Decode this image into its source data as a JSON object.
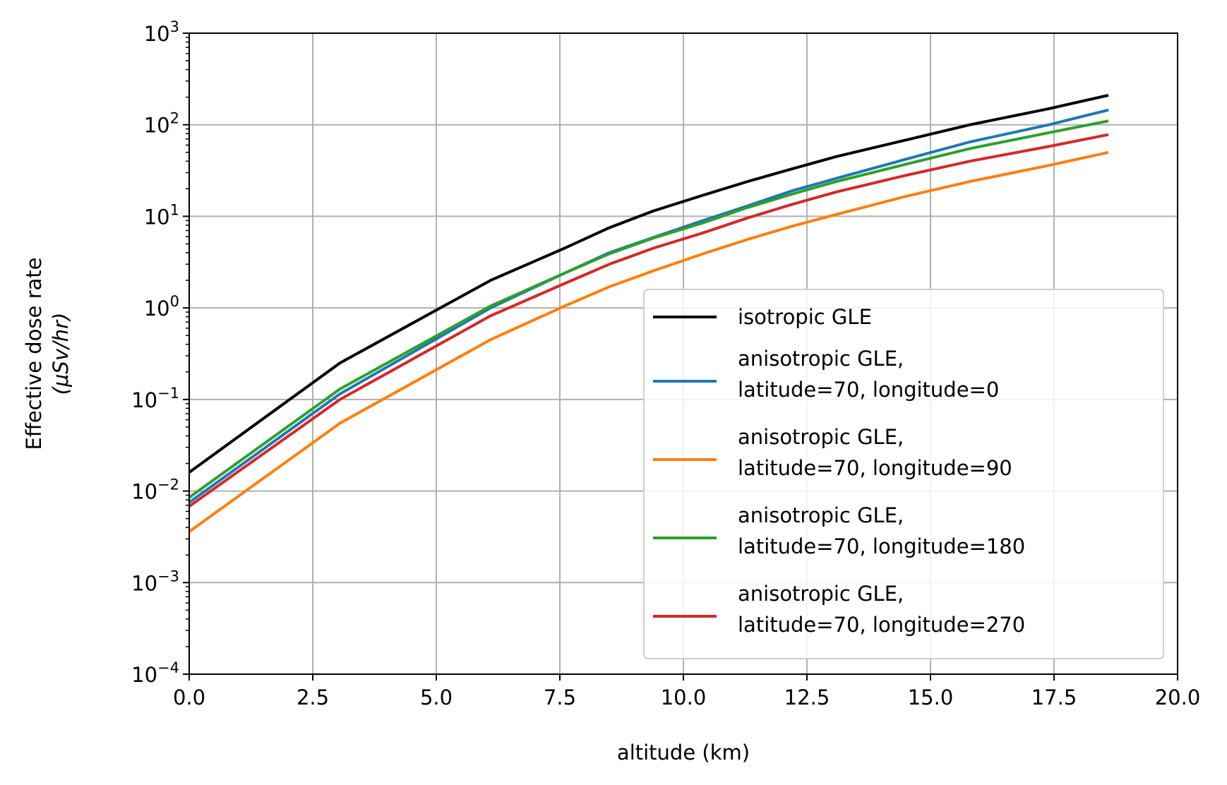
{
  "chart_data": {
    "type": "line",
    "xlabel": "altitude (km)",
    "ylabel_line1": "Effective dose rate",
    "ylabel_line2": "(μSv/hr)",
    "xlim": [
      0,
      20
    ],
    "ylim": [
      0.0001,
      1000
    ],
    "yscale": "log",
    "grid": true,
    "legend_position": "lower-right",
    "x_ticks": [
      "0.0",
      "2.5",
      "5.0",
      "7.5",
      "10.0",
      "12.5",
      "15.0",
      "17.5",
      "20.0"
    ],
    "y_ticks": [
      {
        "base": "10",
        "exp": "−4"
      },
      {
        "base": "10",
        "exp": "−3"
      },
      {
        "base": "10",
        "exp": "−2"
      },
      {
        "base": "10",
        "exp": "−1"
      },
      {
        "base": "10",
        "exp": "0"
      },
      {
        "base": "10",
        "exp": "1"
      },
      {
        "base": "10",
        "exp": "2"
      },
      {
        "base": "10",
        "exp": "3"
      }
    ],
    "x": [
      0,
      3.05,
      6.1,
      7.6,
      8.5,
      9.4,
      10.4,
      11.3,
      12.2,
      13.1,
      14.5,
      15.8,
      17.4,
      18.6
    ],
    "series": [
      {
        "legend": [
          "isotropic GLE"
        ],
        "color": "#000000",
        "values": [
          0.016,
          0.25,
          2.0,
          4.5,
          7.5,
          11.5,
          17.0,
          24.0,
          33.0,
          45.0,
          68.0,
          100.0,
          150.0,
          210.0
        ]
      },
      {
        "legend": [
          "anisotropic GLE,",
          "latitude=70, longitude=0"
        ],
        "color": "#1f77b4",
        "values": [
          0.0075,
          0.115,
          1.0,
          2.4,
          4.0,
          5.9,
          9.0,
          13.0,
          19.0,
          26.0,
          42.0,
          65.0,
          100.0,
          145.0
        ]
      },
      {
        "legend": [
          "anisotropic GLE,",
          "latitude=70, longitude=90"
        ],
        "color": "#ff7f0e",
        "values": [
          0.0036,
          0.055,
          0.45,
          1.05,
          1.7,
          2.55,
          3.9,
          5.6,
          7.8,
          10.5,
          16.5,
          24.0,
          36.0,
          50.0
        ]
      },
      {
        "legend": [
          "anisotropic GLE,",
          "latitude=70, longitude=180"
        ],
        "color": "#2ca02c",
        "values": [
          0.0085,
          0.13,
          1.05,
          2.4,
          3.9,
          5.8,
          8.5,
          12.5,
          17.5,
          24.0,
          37.0,
          55.0,
          82.0,
          110.0
        ]
      },
      {
        "legend": [
          "anisotropic GLE,",
          "latitude=70, longitude=270"
        ],
        "color": "#d62728",
        "values": [
          0.0068,
          0.1,
          0.82,
          1.85,
          3.0,
          4.5,
          6.6,
          9.6,
          13.5,
          18.5,
          28.0,
          40.0,
          58.0,
          78.0
        ]
      }
    ]
  }
}
